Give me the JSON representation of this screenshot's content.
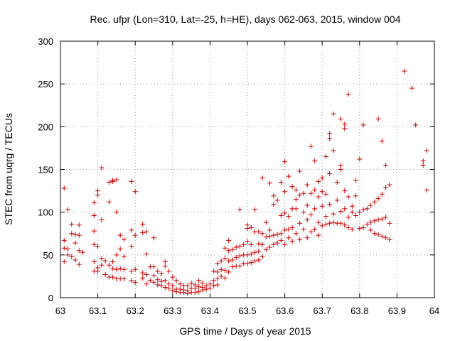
{
  "chart_data": {
    "type": "scatter",
    "title": "Rec. ufpr (Lon=310, Lat=-25, h=HE), days 062-063, 2015, window 004",
    "xlabel": "GPS time / Days of year 2015",
    "ylabel": "STEC from uqrg / TECUs",
    "xlim": [
      63,
      64
    ],
    "ylim": [
      0,
      300
    ],
    "xticks": [
      63,
      63.1,
      63.2,
      63.3,
      63.4,
      63.5,
      63.6,
      63.7,
      63.8,
      63.9,
      64
    ],
    "xtick_labels": [
      "63",
      "63.1",
      "63.2",
      "63.3",
      "63.4",
      "63.5",
      "63.6",
      "63.7",
      "63.8",
      "63.9",
      "64"
    ],
    "yticks": [
      0,
      50,
      100,
      150,
      200,
      250,
      300
    ],
    "ytick_labels": [
      "0",
      "50",
      "100",
      "150",
      "200",
      "250",
      "300"
    ],
    "grid": true,
    "marker": "+",
    "color": "#cc0000",
    "series": [
      {
        "values": [
          [
            63.01,
            128
          ],
          [
            63.01,
            67
          ],
          [
            63.01,
            58
          ],
          [
            63.01,
            42
          ],
          [
            63.02,
            103
          ],
          [
            63.02,
            57
          ],
          [
            63.02,
            50
          ],
          [
            63.03,
            86
          ],
          [
            63.03,
            75
          ],
          [
            63.03,
            48
          ],
          [
            63.04,
            74
          ],
          [
            63.04,
            64
          ],
          [
            63.04,
            44
          ],
          [
            63.05,
            85
          ],
          [
            63.05,
            73
          ],
          [
            63.05,
            55
          ],
          [
            63.05,
            39
          ],
          [
            63.06,
            53
          ],
          [
            63.09,
            111
          ],
          [
            63.09,
            96
          ],
          [
            63.09,
            78
          ],
          [
            63.09,
            62
          ],
          [
            63.09,
            42
          ],
          [
            63.09,
            31
          ],
          [
            63.1,
            125
          ],
          [
            63.1,
            120
          ],
          [
            63.1,
            60
          ],
          [
            63.1,
            35
          ],
          [
            63.1,
            31
          ],
          [
            63.11,
            152
          ],
          [
            63.11,
            91
          ],
          [
            63.11,
            46
          ],
          [
            63.11,
            38
          ],
          [
            63.12,
            43
          ],
          [
            63.12,
            27
          ],
          [
            63.13,
            135
          ],
          [
            63.13,
            112
          ],
          [
            63.13,
            38
          ],
          [
            63.13,
            24
          ],
          [
            63.14,
            137
          ],
          [
            63.14,
            136
          ],
          [
            63.14,
            42
          ],
          [
            63.14,
            34
          ],
          [
            63.14,
            24
          ],
          [
            63.15,
            138
          ],
          [
            63.15,
            100
          ],
          [
            63.15,
            50
          ],
          [
            63.15,
            33
          ],
          [
            63.15,
            22
          ],
          [
            63.16,
            73
          ],
          [
            63.16,
            57
          ],
          [
            63.16,
            34
          ],
          [
            63.16,
            22
          ],
          [
            63.17,
            68
          ],
          [
            63.17,
            48
          ],
          [
            63.17,
            33
          ],
          [
            63.17,
            22
          ],
          [
            63.19,
            136
          ],
          [
            63.19,
            79
          ],
          [
            63.19,
            60
          ],
          [
            63.19,
            31
          ],
          [
            63.19,
            20
          ],
          [
            63.2,
            124
          ],
          [
            63.2,
            73
          ],
          [
            63.2,
            33
          ],
          [
            63.2,
            18
          ],
          [
            63.22,
            86
          ],
          [
            63.22,
            76
          ],
          [
            63.22,
            29
          ],
          [
            63.22,
            23
          ],
          [
            63.23,
            77
          ],
          [
            63.23,
            51
          ],
          [
            63.23,
            27
          ],
          [
            63.23,
            16
          ],
          [
            63.24,
            36
          ],
          [
            63.24,
            20
          ],
          [
            63.25,
            70
          ],
          [
            63.25,
            36
          ],
          [
            63.25,
            26
          ],
          [
            63.25,
            18
          ],
          [
            63.26,
            31
          ],
          [
            63.26,
            21
          ],
          [
            63.26,
            15
          ],
          [
            63.27,
            28
          ],
          [
            63.27,
            19
          ],
          [
            63.27,
            14
          ],
          [
            63.28,
            42
          ],
          [
            63.28,
            37
          ],
          [
            63.28,
            20
          ],
          [
            63.28,
            12
          ],
          [
            63.29,
            31
          ],
          [
            63.29,
            16
          ],
          [
            63.29,
            11
          ],
          [
            63.3,
            24
          ],
          [
            63.3,
            14
          ],
          [
            63.3,
            8
          ],
          [
            63.31,
            20
          ],
          [
            63.31,
            10
          ],
          [
            63.31,
            7
          ],
          [
            63.32,
            16
          ],
          [
            63.32,
            10
          ],
          [
            63.32,
            6
          ],
          [
            63.33,
            14
          ],
          [
            63.33,
            9
          ],
          [
            63.33,
            6
          ],
          [
            63.34,
            14
          ],
          [
            63.34,
            8
          ],
          [
            63.34,
            5
          ],
          [
            63.35,
            17
          ],
          [
            63.35,
            11
          ],
          [
            63.35,
            6
          ],
          [
            63.36,
            15
          ],
          [
            63.36,
            11
          ],
          [
            63.36,
            6
          ],
          [
            63.37,
            20
          ],
          [
            63.37,
            13
          ],
          [
            63.37,
            7
          ],
          [
            63.38,
            17
          ],
          [
            63.38,
            12
          ],
          [
            63.38,
            9
          ],
          [
            63.39,
            14
          ],
          [
            63.39,
            10
          ],
          [
            63.4,
            16
          ],
          [
            63.4,
            11
          ],
          [
            63.41,
            31
          ],
          [
            63.41,
            20
          ],
          [
            63.41,
            14
          ],
          [
            63.42,
            40
          ],
          [
            63.42,
            30
          ],
          [
            63.42,
            22
          ],
          [
            63.42,
            15
          ],
          [
            63.43,
            43
          ],
          [
            63.43,
            33
          ],
          [
            63.43,
            25
          ],
          [
            63.44,
            58
          ],
          [
            63.44,
            46
          ],
          [
            63.44,
            32
          ],
          [
            63.44,
            23
          ],
          [
            63.45,
            67
          ],
          [
            63.45,
            55
          ],
          [
            63.45,
            43
          ],
          [
            63.45,
            30
          ],
          [
            63.46,
            56
          ],
          [
            63.46,
            44
          ],
          [
            63.46,
            36
          ],
          [
            63.47,
            59
          ],
          [
            63.47,
            47
          ],
          [
            63.47,
            37
          ],
          [
            63.48,
            103
          ],
          [
            63.48,
            60
          ],
          [
            63.48,
            49
          ],
          [
            63.48,
            37
          ],
          [
            63.49,
            62
          ],
          [
            63.49,
            50
          ],
          [
            63.49,
            40
          ],
          [
            63.5,
            85
          ],
          [
            63.5,
            81
          ],
          [
            63.5,
            66
          ],
          [
            63.5,
            50
          ],
          [
            63.5,
            40
          ],
          [
            63.51,
            82
          ],
          [
            63.51,
            62
          ],
          [
            63.51,
            51
          ],
          [
            63.51,
            41
          ],
          [
            63.52,
            103
          ],
          [
            63.52,
            77
          ],
          [
            63.52,
            53
          ],
          [
            63.52,
            43
          ],
          [
            63.53,
            77
          ],
          [
            63.53,
            63
          ],
          [
            63.53,
            54
          ],
          [
            63.53,
            44
          ],
          [
            63.54,
            140
          ],
          [
            63.54,
            75
          ],
          [
            63.54,
            62
          ],
          [
            63.54,
            48
          ],
          [
            63.55,
            88
          ],
          [
            63.55,
            71
          ],
          [
            63.55,
            56
          ],
          [
            63.56,
            134
          ],
          [
            63.56,
            79
          ],
          [
            63.56,
            72
          ],
          [
            63.56,
            59
          ],
          [
            63.57,
            119
          ],
          [
            63.57,
            109
          ],
          [
            63.57,
            73
          ],
          [
            63.57,
            62
          ],
          [
            63.58,
            114
          ],
          [
            63.58,
            74
          ],
          [
            63.58,
            64
          ],
          [
            63.59,
            135
          ],
          [
            63.59,
            96
          ],
          [
            63.59,
            75
          ],
          [
            63.59,
            67
          ],
          [
            63.6,
            159
          ],
          [
            63.6,
            124
          ],
          [
            63.6,
            99
          ],
          [
            63.6,
            79
          ],
          [
            63.6,
            62
          ],
          [
            63.61,
            142
          ],
          [
            63.61,
            95
          ],
          [
            63.61,
            80
          ],
          [
            63.61,
            70
          ],
          [
            63.62,
            130
          ],
          [
            63.62,
            104
          ],
          [
            63.62,
            82
          ],
          [
            63.62,
            66
          ],
          [
            63.63,
            126
          ],
          [
            63.63,
            115
          ],
          [
            63.63,
            104
          ],
          [
            63.63,
            75
          ],
          [
            63.64,
            148
          ],
          [
            63.64,
            120
          ],
          [
            63.64,
            87
          ],
          [
            63.64,
            68
          ],
          [
            63.65,
            122
          ],
          [
            63.65,
            100
          ],
          [
            63.65,
            80
          ],
          [
            63.66,
            132
          ],
          [
            63.66,
            108
          ],
          [
            63.66,
            91
          ],
          [
            63.66,
            70
          ],
          [
            63.67,
            177
          ],
          [
            63.67,
            122
          ],
          [
            63.67,
            97
          ],
          [
            63.67,
            77
          ],
          [
            63.68,
            160
          ],
          [
            63.68,
            126
          ],
          [
            63.68,
            104
          ],
          [
            63.68,
            80
          ],
          [
            63.69,
            136
          ],
          [
            63.69,
            118
          ],
          [
            63.69,
            88
          ],
          [
            63.69,
            73
          ],
          [
            63.7,
            140
          ],
          [
            63.7,
            124
          ],
          [
            63.7,
            107
          ],
          [
            63.7,
            84
          ],
          [
            63.71,
            165
          ],
          [
            63.71,
            121
          ],
          [
            63.71,
            95
          ],
          [
            63.71,
            86
          ],
          [
            63.72,
            192
          ],
          [
            63.72,
            186
          ],
          [
            63.72,
            145
          ],
          [
            63.72,
            109
          ],
          [
            63.72,
            87
          ],
          [
            63.73,
            215
          ],
          [
            63.73,
            172
          ],
          [
            63.73,
            98
          ],
          [
            63.73,
            88
          ],
          [
            63.74,
            135
          ],
          [
            63.74,
            114
          ],
          [
            63.74,
            87
          ],
          [
            63.75,
            209
          ],
          [
            63.75,
            155
          ],
          [
            63.75,
            150
          ],
          [
            63.75,
            101
          ],
          [
            63.75,
            87
          ],
          [
            63.76,
            203
          ],
          [
            63.76,
            198
          ],
          [
            63.76,
            125
          ],
          [
            63.76,
            104
          ],
          [
            63.76,
            85
          ],
          [
            63.77,
            238
          ],
          [
            63.77,
            118
          ],
          [
            63.77,
            94
          ],
          [
            63.77,
            82
          ],
          [
            63.78,
            107
          ],
          [
            63.78,
            100
          ],
          [
            63.78,
            80
          ],
          [
            63.79,
            137
          ],
          [
            63.79,
            119
          ],
          [
            63.79,
            96
          ],
          [
            63.8,
            162
          ],
          [
            63.8,
            100
          ],
          [
            63.8,
            81
          ],
          [
            63.81,
            202
          ],
          [
            63.81,
            103
          ],
          [
            63.81,
            82
          ],
          [
            63.82,
            104
          ],
          [
            63.82,
            86
          ],
          [
            63.83,
            108
          ],
          [
            63.83,
            88
          ],
          [
            63.83,
            79
          ],
          [
            63.84,
            112
          ],
          [
            63.84,
            90
          ],
          [
            63.84,
            75
          ],
          [
            63.85,
            209
          ],
          [
            63.85,
            116
          ],
          [
            63.85,
            91
          ],
          [
            63.85,
            74
          ],
          [
            63.86,
            183
          ],
          [
            63.86,
            121
          ],
          [
            63.86,
            92
          ],
          [
            63.86,
            72
          ],
          [
            63.87,
            155
          ],
          [
            63.87,
            129
          ],
          [
            63.87,
            94
          ],
          [
            63.87,
            70
          ],
          [
            63.88,
            132
          ],
          [
            63.88,
            87
          ],
          [
            63.88,
            68
          ],
          [
            63.92,
            265
          ],
          [
            63.94,
            245
          ],
          [
            63.95,
            202
          ],
          [
            63.97,
            160
          ],
          [
            63.97,
            155
          ],
          [
            63.98,
            172
          ],
          [
            63.98,
            126
          ]
        ]
      }
    ]
  }
}
